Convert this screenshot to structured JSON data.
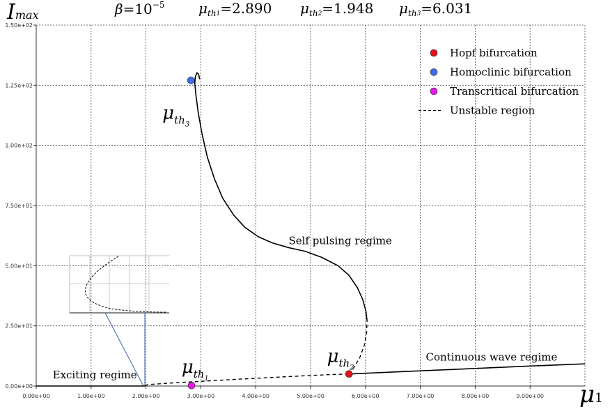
{
  "header": {
    "beta": {
      "symbol": "β",
      "eq": "=10",
      "exp": "−5"
    },
    "mu_th1": {
      "symbol": "μ",
      "sub": "th",
      "sub2": "1",
      "eq": "=2.890"
    },
    "mu_th2": {
      "symbol": "μ",
      "sub": "th",
      "sub2": "2",
      "eq": "=1.948"
    },
    "mu_th3": {
      "symbol": "μ",
      "sub": "th",
      "sub2": "3",
      "eq": "=6.031"
    }
  },
  "axes": {
    "ylabel_main": "I",
    "ylabel_sub": "max",
    "xlabel_main": "μ",
    "xlabel_sub": "1"
  },
  "chart_data": {
    "type": "line",
    "xlim": [
      0,
      10
    ],
    "ylim": [
      0,
      150
    ],
    "grid": true,
    "x_tick_labels": [
      "0.00e+00",
      "1.00e+00",
      "2.00e+00",
      "3.00e+00",
      "4.00e+00",
      "5.00e+00",
      "6.00e+00",
      "7.00e+00",
      "8.00e+00",
      "9.00e+00"
    ],
    "x_tick_values": [
      0,
      1,
      2,
      3,
      4,
      5,
      6,
      7,
      8,
      9
    ],
    "y_tick_labels": [
      "0.00e+00",
      "2.50e+01",
      "5.00e+01",
      "7.50e+01",
      "1.00e+02",
      "1.25e+02",
      "1.50e+02"
    ],
    "y_tick_values": [
      0,
      25,
      50,
      75,
      100,
      125,
      150
    ],
    "legend_position": "top-right",
    "legend": [
      {
        "label": "Hopf bifurcation",
        "marker": "dot",
        "color": "#e3141c"
      },
      {
        "label": "Homoclinic bifurcation",
        "marker": "dot",
        "color": "#3e6fe8"
      },
      {
        "label": "Transcritical bifurcation",
        "marker": "dot",
        "color": "#e31ae3"
      },
      {
        "label": "Unstable region",
        "marker": "dash",
        "color": "#000000"
      }
    ],
    "series": [
      {
        "style": "solid",
        "x": [
          0,
          1.0,
          1.8,
          1.98
        ],
        "y": [
          0,
          0,
          0,
          0
        ]
      },
      {
        "style": "dashed",
        "x": [
          1.98,
          2.1,
          2.5,
          2.89,
          3.5,
          4.5,
          5.3,
          5.7
        ],
        "y": [
          0.3,
          0.7,
          1.3,
          1.8,
          2.6,
          3.8,
          4.7,
          5.0
        ]
      },
      {
        "style": "solid",
        "x": [
          5.7,
          6.5,
          7.5,
          8.5,
          9.0,
          10.0
        ],
        "y": [
          5.0,
          5.8,
          6.8,
          7.8,
          8.3,
          9.2
        ]
      },
      {
        "style": "dashed",
        "x": [
          5.7,
          5.8,
          5.9,
          5.98,
          6.02,
          6.03
        ],
        "y": [
          5.0,
          8.0,
          12.0,
          17.0,
          22.0,
          27.0
        ]
      },
      {
        "style": "solid",
        "x": [
          6.03,
          6.01,
          5.95,
          5.85,
          5.7,
          5.5,
          5.2,
          4.9,
          4.6,
          4.3,
          4.05,
          3.8,
          3.6,
          3.4,
          3.25,
          3.12,
          3.02,
          2.95,
          2.91,
          2.89,
          2.9,
          2.93,
          2.96,
          2.98
        ],
        "y": [
          27,
          31,
          36,
          41,
          46,
          50,
          53.5,
          56,
          57.5,
          59.5,
          62,
          66,
          71,
          78,
          86,
          95,
          105,
          114,
          121,
          126,
          128.5,
          130.2,
          129.5,
          127.5
        ]
      }
    ],
    "markers": [
      {
        "name": "Hopf bifurcation",
        "x": 5.7,
        "y": 5.0,
        "color": "#e3141c"
      },
      {
        "name": "Homoclinic bifurcation",
        "x": 2.82,
        "y": 127,
        "color": "#3e6fe8"
      },
      {
        "name": "Transcritical bifurcation",
        "x": 2.83,
        "y": 0.2,
        "color": "#e31ae3"
      }
    ],
    "annotations": [
      {
        "text": "Self pulsing regime",
        "x": 4.6,
        "y": 59,
        "style": "plain"
      },
      {
        "text": "Continuous wave regime",
        "x": 7.1,
        "y": 10.5,
        "style": "plain"
      },
      {
        "text": "Exciting regime",
        "x": 0.3,
        "y": 3.2,
        "style": "plain"
      },
      {
        "text": "μ",
        "sub": "th",
        "sub2": "1",
        "x": 2.65,
        "y": 5.5,
        "style": "mu"
      },
      {
        "text": "μ",
        "sub": "th",
        "sub2": "2",
        "x": 5.3,
        "y": 10.0,
        "style": "mu"
      },
      {
        "text": "μ",
        "sub": "th",
        "sub2": "3",
        "x": 2.3,
        "y": 111,
        "style": "mu"
      }
    ]
  }
}
